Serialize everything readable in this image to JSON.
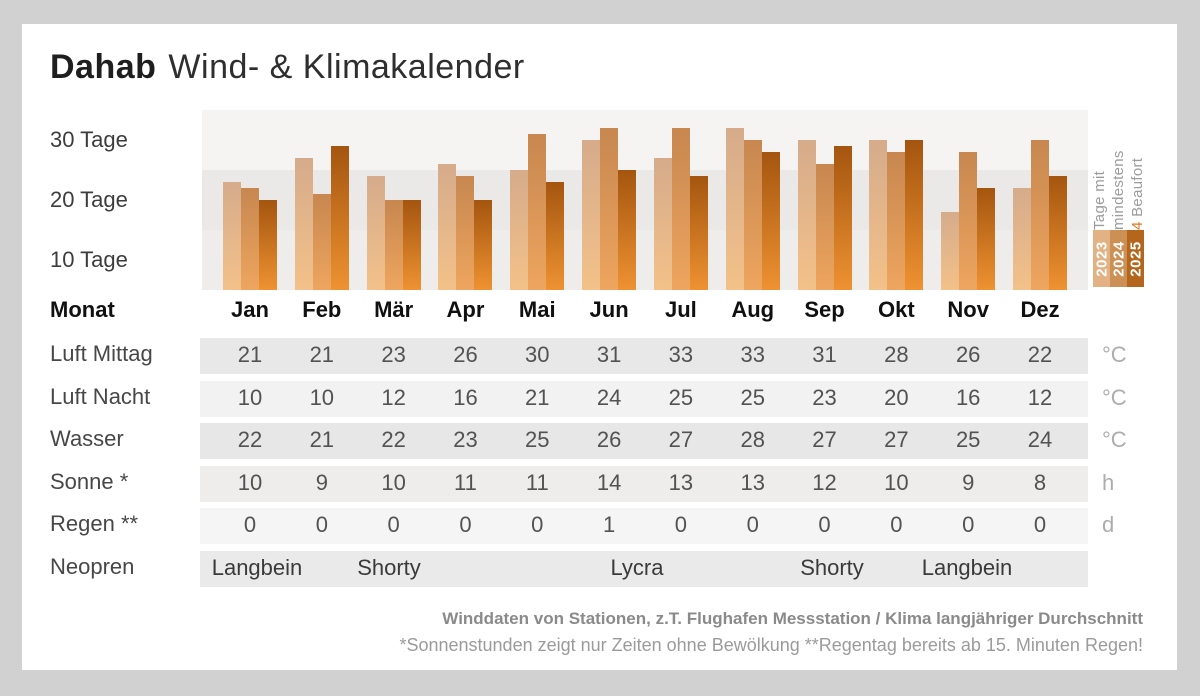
{
  "title": {
    "brand": "Dahab",
    "rest": "Wind- & Klimakalender"
  },
  "chart_data": {
    "type": "bar",
    "title": "Tage mit mindestens 4 Beaufort",
    "categories": [
      "Jan",
      "Feb",
      "Mär",
      "Apr",
      "Mai",
      "Jun",
      "Jul",
      "Aug",
      "Sep",
      "Okt",
      "Nov",
      "Dez"
    ],
    "series": [
      {
        "name": "2023",
        "values": [
          18,
          22,
          19,
          21,
          20,
          25,
          22,
          27,
          25,
          25,
          13,
          17
        ],
        "color_top": "#d5ab8b",
        "color_bottom": "#f3c189",
        "legend_color": "#e2b285"
      },
      {
        "name": "2024",
        "values": [
          17,
          16,
          15,
          19,
          26,
          27,
          27,
          25,
          21,
          23,
          23,
          25
        ],
        "color_top": "#c78750",
        "color_bottom": "#eea55f",
        "legend_color": "#cd9054"
      },
      {
        "name": "2025",
        "values": [
          15,
          24,
          15,
          15,
          18,
          20,
          19,
          23,
          24,
          25,
          17,
          19
        ],
        "color_top": "#a4550f",
        "color_bottom": "#ee9232",
        "legend_color": "#b4671c"
      }
    ],
    "ylim": [
      0,
      30
    ],
    "ytick_labels": [
      "30 Tage",
      "20 Tage",
      "10 Tage"
    ],
    "grid": "horizontal-bands",
    "legend_position": "right"
  },
  "chart_legend": {
    "line1": "Tage mit",
    "line2": "mindestens",
    "line3_accent": "4",
    "line3_rest": " Beaufort",
    "accent_color": "#e0761e"
  },
  "table": {
    "header_label": "Monat",
    "months": [
      "Jan",
      "Feb",
      "Mär",
      "Apr",
      "Mai",
      "Jun",
      "Jul",
      "Aug",
      "Sep",
      "Okt",
      "Nov",
      "Dez"
    ],
    "rows": [
      {
        "label": "Luft Mittag",
        "unit": "°C",
        "values": [
          21,
          21,
          23,
          26,
          30,
          31,
          33,
          33,
          31,
          28,
          26,
          22
        ]
      },
      {
        "label": "Luft Nacht",
        "unit": "°C",
        "values": [
          10,
          10,
          12,
          16,
          21,
          24,
          25,
          25,
          23,
          20,
          16,
          12
        ]
      },
      {
        "label": "Wasser",
        "unit": "°C",
        "values": [
          22,
          21,
          22,
          23,
          25,
          26,
          27,
          28,
          27,
          27,
          25,
          24
        ]
      },
      {
        "label": "Sonne *",
        "unit": "h",
        "values": [
          10,
          9,
          10,
          11,
          11,
          14,
          13,
          13,
          12,
          10,
          9,
          8
        ]
      },
      {
        "label": "Regen **",
        "unit": "d",
        "values": [
          0,
          0,
          0,
          0,
          0,
          1,
          0,
          0,
          0,
          0,
          0,
          0
        ]
      }
    ],
    "neopren": {
      "label": "Neopren",
      "spans": [
        {
          "text": "Langbein",
          "from": 0,
          "to": 1
        },
        {
          "text": "Shorty",
          "from": 2,
          "to": 3
        },
        {
          "text": "Lycra",
          "from": 4,
          "to": 7
        },
        {
          "text": "Shorty",
          "from": 8,
          "to": 9
        },
        {
          "text": "Langbein",
          "from": 10,
          "to": 11
        }
      ]
    }
  },
  "footer": {
    "line1": "Winddaten von Stationen, z.T. Flughafen Messstation / Klima langjähriger Durchschnitt",
    "line2": "*Sonnenstunden zeigt nur Zeiten ohne Bewölkung  **Regentag bereits ab 15. Minuten Regen!"
  }
}
